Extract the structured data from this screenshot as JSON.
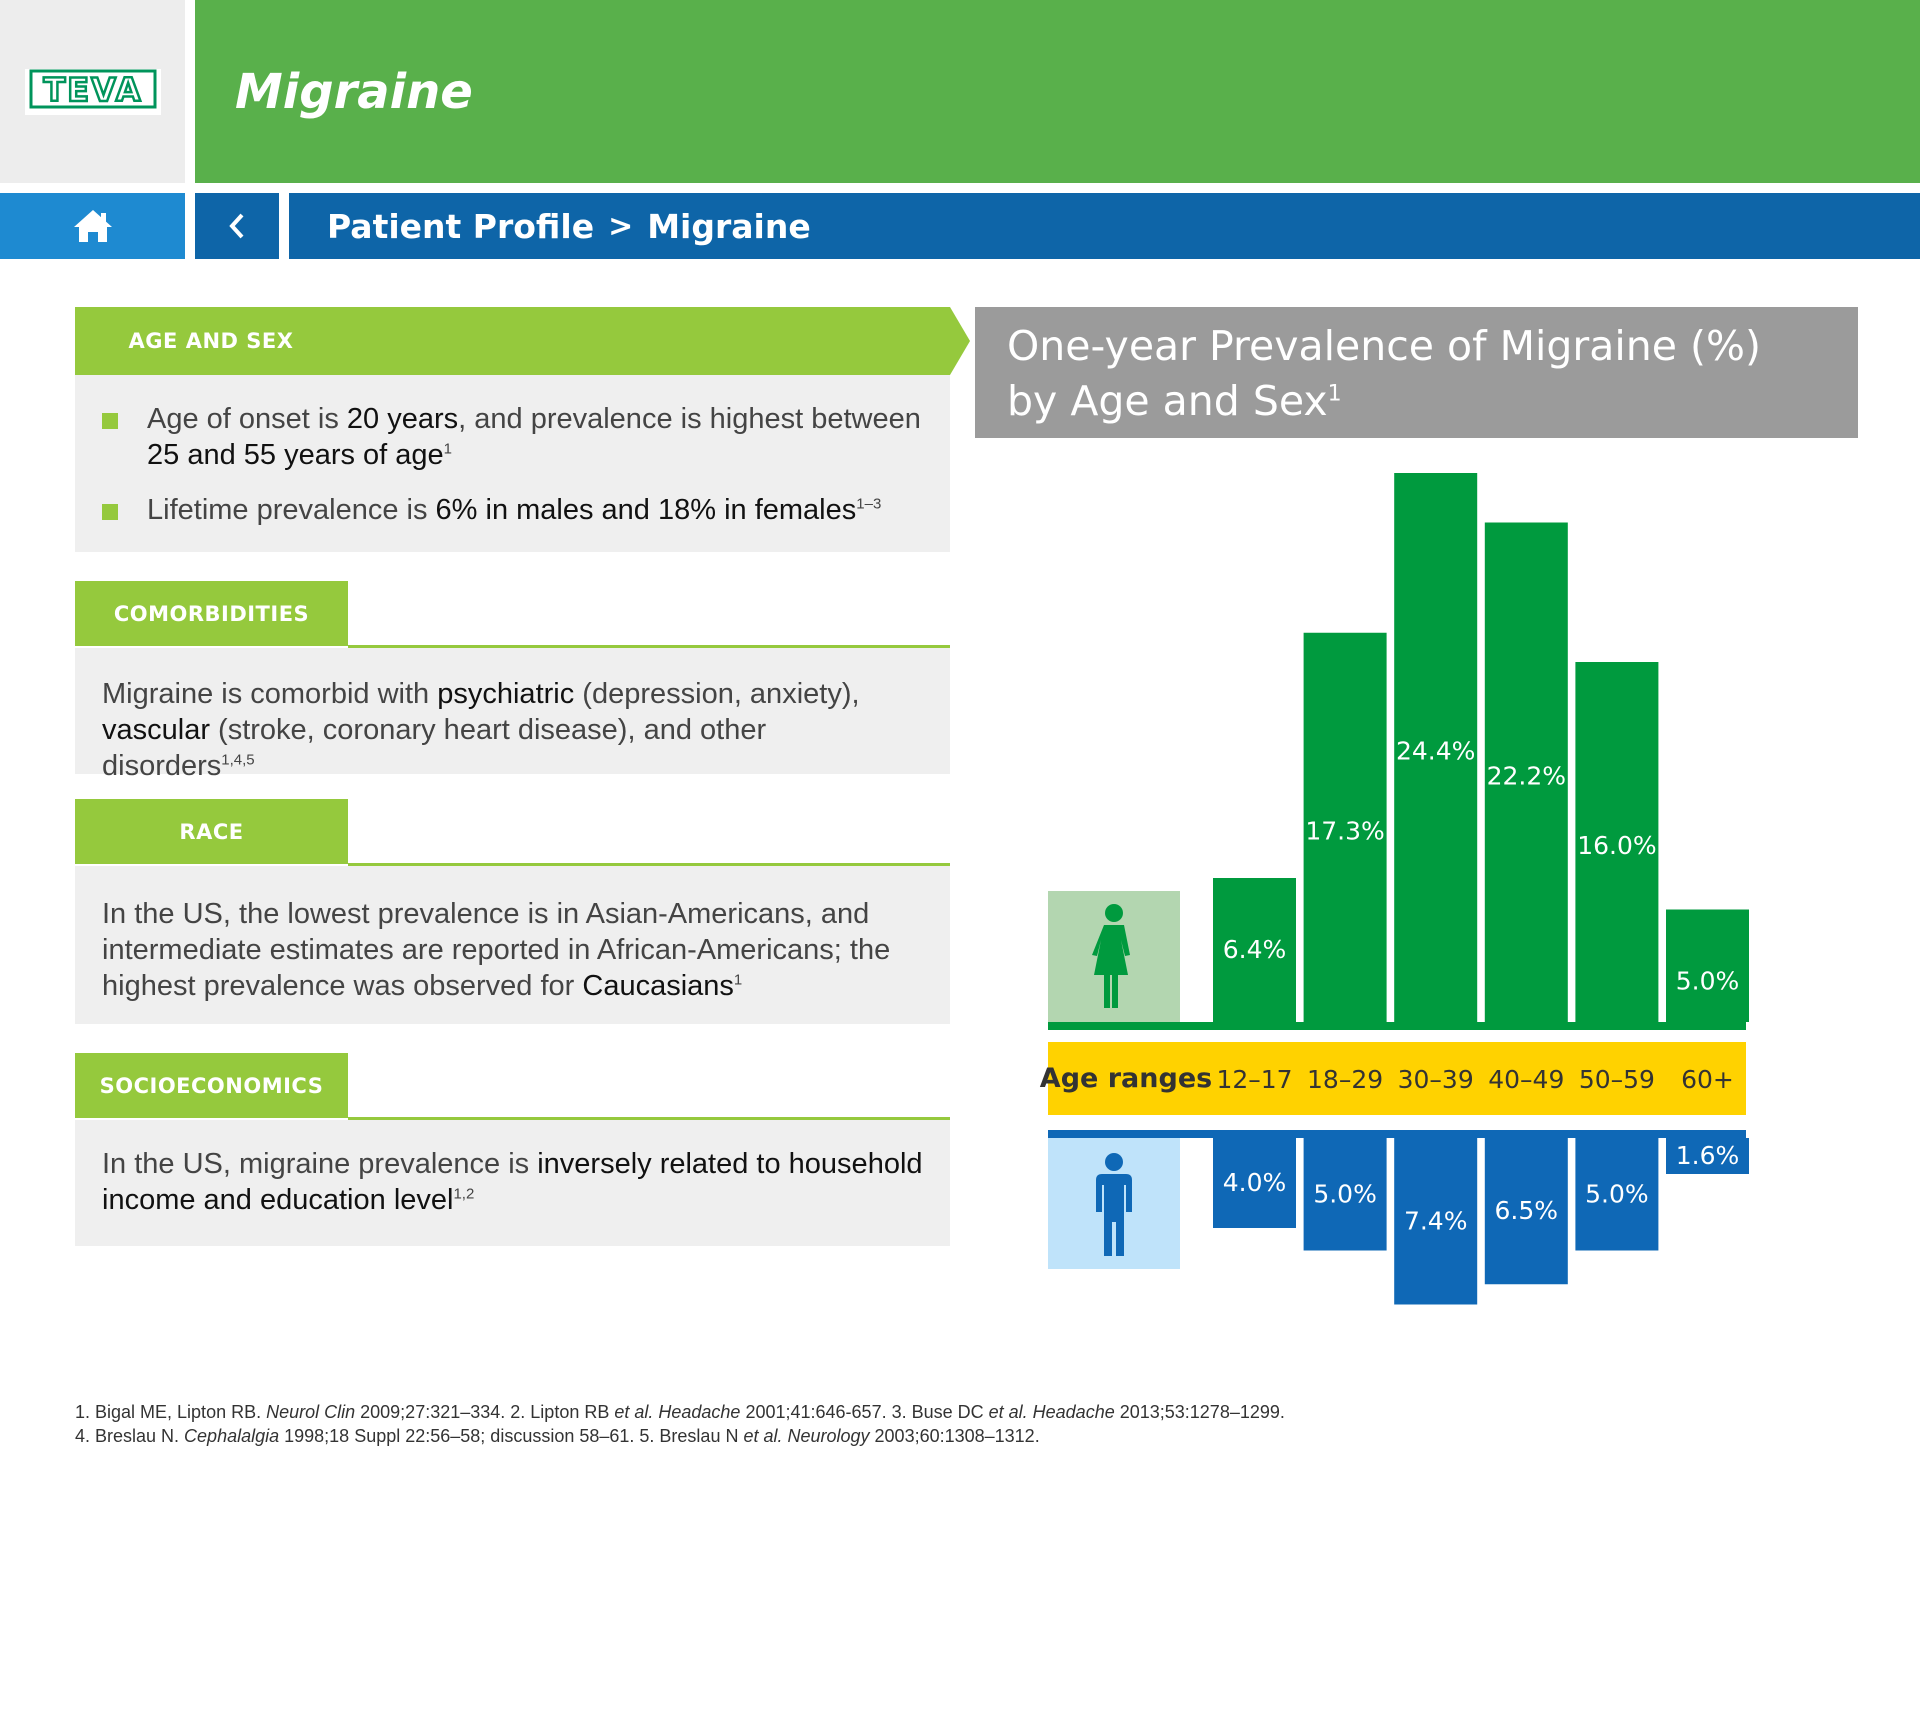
{
  "header": {
    "logo_text": "TEVA",
    "title": "Migraine"
  },
  "nav": {
    "breadcrumb": [
      "Patient Profile",
      "Migraine"
    ],
    "separator": ">"
  },
  "sections": {
    "age_sex": {
      "heading": "AGE AND SEX",
      "bullet1": {
        "t1": "Age of onset is ",
        "b1": "20 years",
        "t2": ", and prevalence is highest between ",
        "b2": "25 and 55 years of age",
        "sup": "1"
      },
      "bullet2": {
        "t1": "Lifetime prevalence is ",
        "b1": "6% in males and 18% in females",
        "sup": "1–3"
      }
    },
    "comorbidities": {
      "heading": "COMORBIDITIES",
      "t1": "Migraine is comorbid with ",
      "b1": "psychiatric",
      "t2": " (depression, anxiety), ",
      "b2": "vascular",
      "t3": " (stroke, coronary heart disease), and other disorders",
      "sup": "1,4,5"
    },
    "race": {
      "heading": "RACE",
      "t1": "In the US, the lowest prevalence is in Asian-Americans, and intermediate estimates are reported in African-Americans; the highest prevalence was observed for ",
      "b1": "Caucasians",
      "sup": "1"
    },
    "socioeconomics": {
      "heading": "SOCIOECONOMICS",
      "t1": "In the US, migraine prevalence is ",
      "b1": "inversely related to household income and education level",
      "sup": "1,2"
    }
  },
  "colors": {
    "female": "#009a3e",
    "female_light": "#b3d6b0",
    "male": "#0f68b6",
    "male_light": "#bfe3fa",
    "age_band": "#ffd200"
  },
  "chart_data": {
    "type": "bar",
    "title": "One-year Prevalence of Migraine (%)",
    "title_line2": "by Age and Sex",
    "title_sup": "1",
    "axis_label": "Age ranges",
    "categories": [
      "12–17",
      "18–29",
      "30–39",
      "40–49",
      "50–59",
      "60+"
    ],
    "series": [
      {
        "values": [
          6.4,
          17.3,
          24.4,
          22.2,
          16.0,
          5.0
        ],
        "labels": [
          "6.4%",
          "17.3%",
          "24.4%",
          "22.2%",
          "16.0%",
          "5.0%"
        ]
      },
      {
        "values": [
          4.0,
          5.0,
          7.4,
          6.5,
          5.0,
          1.6
        ],
        "labels": [
          "4.0%",
          "5.0%",
          "7.4%",
          "6.5%",
          "5.0%",
          "1.6%"
        ]
      }
    ]
  },
  "footnotes": {
    "line1": [
      {
        "t": "1. Bigal ME, Lipton RB. ",
        "i": false
      },
      {
        "t": "Neurol Clin",
        "i": true
      },
      {
        "t": " 2009;27:321–334. 2. Lipton RB ",
        "i": false
      },
      {
        "t": "et al. Headache",
        "i": true
      },
      {
        "t": " 2001;41:646-657. 3. Buse DC ",
        "i": false
      },
      {
        "t": "et al. Headache",
        "i": true
      },
      {
        "t": " 2013;53:1278–1299.",
        "i": false
      }
    ],
    "line2": [
      {
        "t": "4. Breslau N. ",
        "i": false
      },
      {
        "t": "Cephalalgia",
        "i": true
      },
      {
        "t": " 1998;18 Suppl 22:56–58; discussion 58–61. 5. Breslau N ",
        "i": false
      },
      {
        "t": "et al. Neurology",
        "i": true
      },
      {
        "t": " 2003;60:1308–1312.",
        "i": false
      }
    ]
  }
}
